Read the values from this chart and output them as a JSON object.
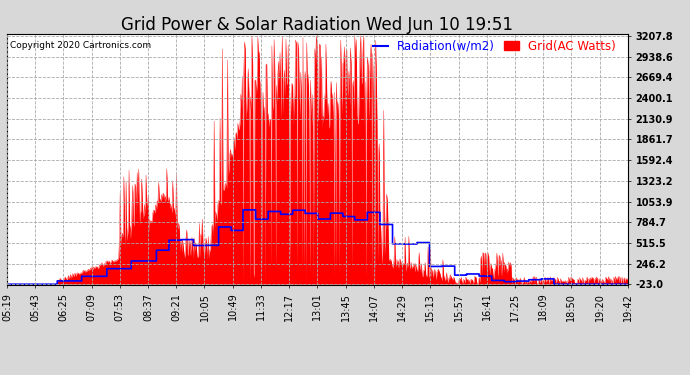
{
  "title": "Grid Power & Solar Radiation Wed Jun 10 19:51",
  "copyright": "Copyright 2020 Cartronics.com",
  "legend_radiation": "Radiation(w/m2)",
  "legend_grid": "Grid(AC Watts)",
  "radiation_color": "blue",
  "grid_color": "red",
  "background_color": "#d8d8d8",
  "plot_bg_color": "#ffffff",
  "ymin": -23.0,
  "ymax": 3207.8,
  "yticks": [
    3207.8,
    2938.6,
    2669.4,
    2400.1,
    2130.9,
    1861.7,
    1592.4,
    1323.2,
    1053.9,
    784.7,
    515.5,
    246.2,
    -23.0
  ],
  "title_fontsize": 12,
  "tick_fontsize": 7,
  "legend_fontsize": 8.5,
  "xtick_labels": [
    "05:19",
    "05:43",
    "06:25",
    "07:09",
    "07:53",
    "08:37",
    "09:21",
    "10:05",
    "10:49",
    "11:33",
    "12:17",
    "13:01",
    "13:45",
    "14:07",
    "14:29",
    "15:13",
    "15:57",
    "16:41",
    "17:25",
    "18:09",
    "18:50",
    "19:20",
    "19:42"
  ]
}
